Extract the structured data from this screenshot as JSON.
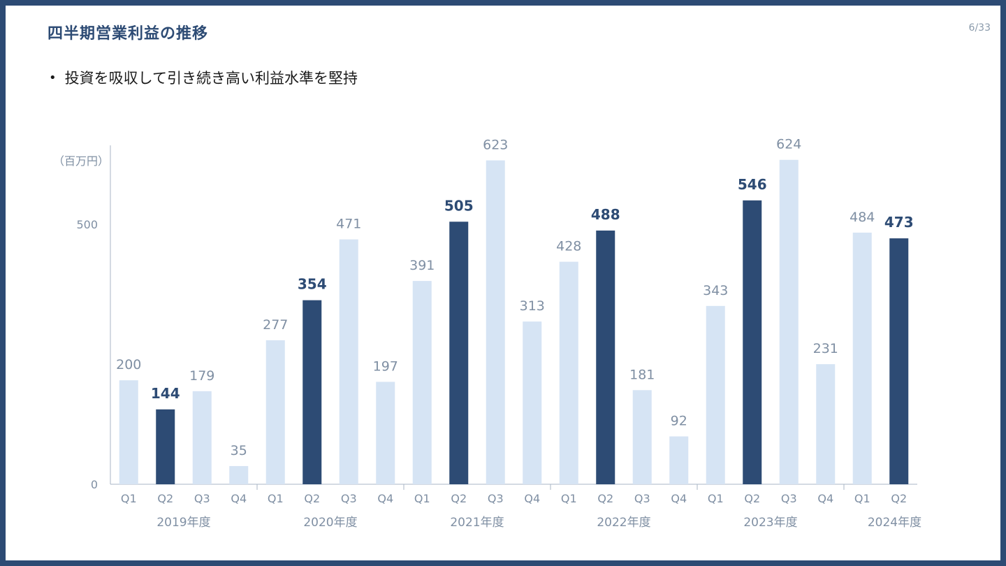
{
  "slide": {
    "title": "四半期営業利益の推移",
    "page_number": "6/33",
    "bullet": "投資を吸収して引き続き高い利益水準を堅持"
  },
  "colors": {
    "highlight": "#2d4b74",
    "regular": "#d6e4f4",
    "label_regular": "#7f8fa3",
    "label_highlight": "#2d4b74",
    "axis": "#a9b6c6"
  },
  "chart_data": {
    "type": "bar",
    "title": "",
    "ylabel": "（百万円）",
    "xlabel": "",
    "ylim": [
      0,
      650
    ],
    "yticks": [
      0,
      500
    ],
    "grid": false,
    "categories": [
      "Q1",
      "Q2",
      "Q3",
      "Q4",
      "Q1",
      "Q2",
      "Q3",
      "Q4",
      "Q1",
      "Q2",
      "Q3",
      "Q4",
      "Q1",
      "Q2",
      "Q3",
      "Q4",
      "Q1",
      "Q2",
      "Q3",
      "Q4",
      "Q1",
      "Q2"
    ],
    "values": [
      200,
      144,
      179,
      35,
      277,
      354,
      471,
      197,
      391,
      505,
      623,
      313,
      428,
      488,
      181,
      92,
      343,
      546,
      624,
      231,
      484,
      473
    ],
    "highlight": [
      false,
      true,
      false,
      false,
      false,
      true,
      false,
      false,
      false,
      true,
      false,
      false,
      false,
      true,
      false,
      false,
      false,
      true,
      false,
      false,
      false,
      true
    ],
    "years": [
      {
        "label": "2019年度",
        "start": 0,
        "count": 4
      },
      {
        "label": "2020年度",
        "start": 4,
        "count": 4
      },
      {
        "label": "2021年度",
        "start": 8,
        "count": 4
      },
      {
        "label": "2022年度",
        "start": 12,
        "count": 4
      },
      {
        "label": "2023年度",
        "start": 16,
        "count": 4
      },
      {
        "label": "2024年度",
        "start": 20,
        "count": 2
      }
    ]
  }
}
